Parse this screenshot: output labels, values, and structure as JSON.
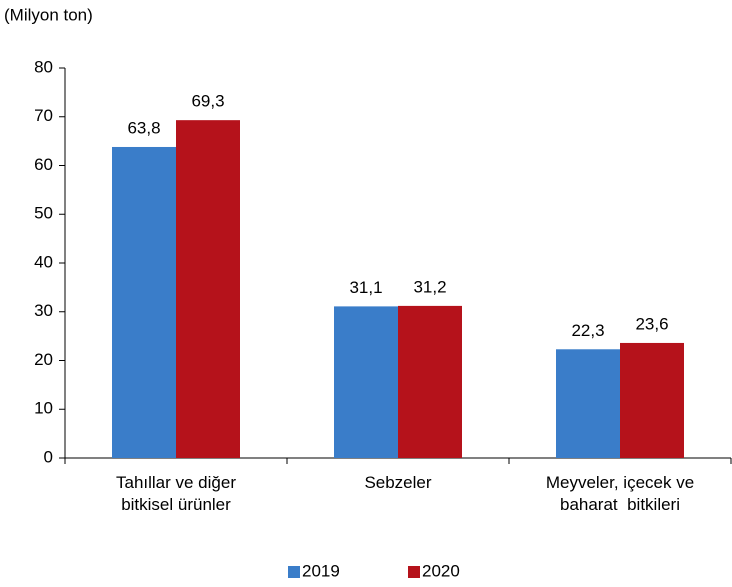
{
  "chart_data": {
    "type": "bar",
    "subtitle": "(Milyon ton)",
    "categories": [
      "Tahıllar ve diğer\nbitkisel ürünler",
      "Sebzeler",
      "Meyveler, içecek ve\nbaharat  bitkileri"
    ],
    "series": [
      {
        "name": "2019",
        "color": "#3a7dc9",
        "values": [
          63.8,
          31.1,
          22.3
        ],
        "value_labels": [
          "63,8",
          "31,1",
          "22,3"
        ]
      },
      {
        "name": "2020",
        "color": "#b5121b",
        "values": [
          69.3,
          31.2,
          23.6
        ],
        "value_labels": [
          "69,3",
          "31,2",
          "23,6"
        ]
      }
    ],
    "ylim": [
      0,
      80
    ],
    "yticks": [
      0,
      10,
      20,
      30,
      40,
      50,
      60,
      70,
      80
    ],
    "legend": "bottom"
  }
}
